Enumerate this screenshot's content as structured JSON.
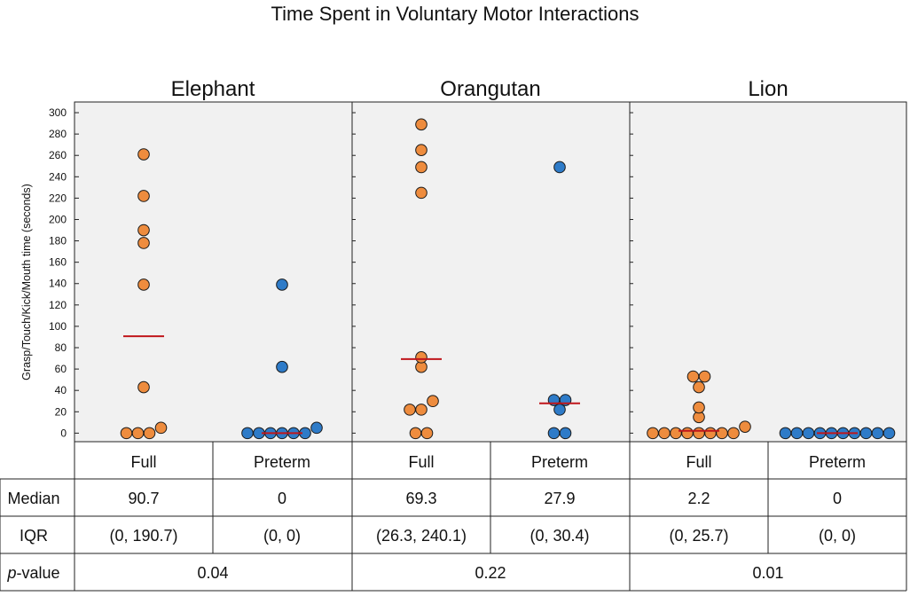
{
  "chart_data": {
    "type": "scatter",
    "title": "Time Spent in Voluntary Motor Interactions",
    "ylabel": "Grasp/Touch/Kick/Mouth time (seconds)",
    "ylim": [
      -8,
      310
    ],
    "yticks": [
      0,
      20,
      40,
      60,
      80,
      100,
      120,
      140,
      160,
      180,
      200,
      220,
      240,
      260,
      280,
      300
    ],
    "colors": {
      "full": "#EE8C3E",
      "preterm": "#2E7BC8",
      "median": "#C0161B",
      "panel_bg": "#F1F1F1"
    },
    "panels": [
      {
        "title": "Elephant",
        "groups": [
          {
            "name": "Full",
            "color_key": "full",
            "median": 90.7,
            "values": [
              0,
              0,
              0,
              5,
              43,
              139,
              178,
              190,
              222,
              261
            ]
          },
          {
            "name": "Preterm",
            "color_key": "preterm",
            "median": 0,
            "values": [
              0,
              0,
              0,
              0,
              0,
              0,
              5,
              62,
              139
            ]
          }
        ]
      },
      {
        "title": "Orangutan",
        "groups": [
          {
            "name": "Full",
            "color_key": "full",
            "median": 69.3,
            "values": [
              0,
              0,
              22,
              22,
              30,
              62,
              71,
              225,
              249,
              265,
              289
            ]
          },
          {
            "name": "Preterm",
            "color_key": "preterm",
            "median": 27.9,
            "values": [
              0,
              0,
              22,
              31,
              31,
              249
            ]
          }
        ]
      },
      {
        "title": "Lion",
        "groups": [
          {
            "name": "Full",
            "color_key": "full",
            "median": 2.2,
            "values": [
              0,
              0,
              0,
              0,
              0,
              0,
              0,
              0,
              6,
              15,
              24,
              43,
              53,
              53
            ]
          },
          {
            "name": "Preterm",
            "color_key": "preterm",
            "median": 0,
            "values": [
              0,
              0,
              0,
              0,
              0,
              0,
              0,
              0,
              0,
              0
            ]
          }
        ]
      }
    ]
  },
  "stats_table": {
    "row_labels": {
      "median": "Median",
      "iqr": "IQR",
      "pvalue_italic": "p",
      "pvalue_rest": "-value"
    },
    "group_labels": [
      "Full",
      "Preterm",
      "Full",
      "Preterm",
      "Full",
      "Preterm"
    ],
    "medians": [
      "90.7",
      "0",
      "69.3",
      "27.9",
      "2.2",
      "0"
    ],
    "iqrs": [
      "(0, 190.7)",
      "(0, 0)",
      "(26.3, 240.1)",
      "(0, 30.4)",
      "(0, 25.7)",
      "(0, 0)"
    ],
    "pvalues": [
      "0.04",
      "0.22",
      "0.01"
    ]
  }
}
